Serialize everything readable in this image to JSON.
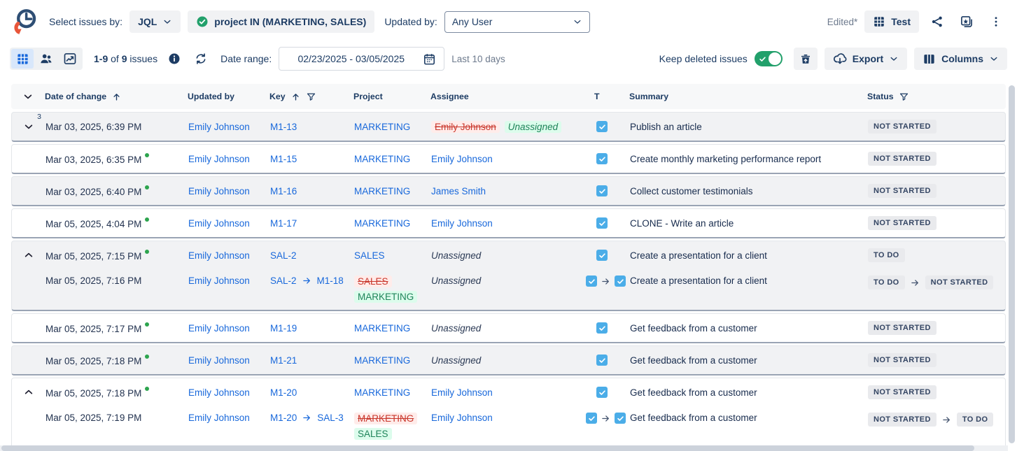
{
  "header": {
    "select_issues_by_label": "Select issues by:",
    "mode_value": "JQL",
    "jql_filter": "project IN (MARKETING, SALES)",
    "updated_by_label": "Updated by:",
    "updated_by_value": "Any User",
    "edited_label": "Edited*",
    "view_name": "Test"
  },
  "toolbar": {
    "count_range": "1-9",
    "count_of": "of",
    "count_total": "9",
    "count_unit": "issues",
    "date_range_label": "Date range:",
    "date_range_value": "02/23/2025 - 03/05/2025",
    "date_hint": "Last 10 days",
    "keep_deleted_label": "Keep deleted issues",
    "keep_deleted_on": true,
    "export_label": "Export",
    "columns_label": "Columns"
  },
  "table": {
    "headers": {
      "date": "Date of change",
      "updated_by": "Updated by",
      "key": "Key",
      "project": "Project",
      "assignee": "Assignee",
      "type": "T",
      "summary": "Summary",
      "status": "Status"
    },
    "cards": [
      {
        "shade": "gray",
        "expander": "down",
        "count": "3",
        "entries": [
          {
            "date": "Mar 03, 2025, 6:39 PM",
            "dot": false,
            "updated_by": "Emily Johnson",
            "key": {
              "value": "M1-13"
            },
            "project": {
              "value": "MARKETING"
            },
            "assignee": {
              "old": "Emily Johnson",
              "new": "Unassigned"
            },
            "type": {
              "changed": false
            },
            "summary": "Publish an article",
            "status": {
              "value": "NOT STARTED"
            }
          }
        ]
      },
      {
        "shade": "white",
        "expander": null,
        "count": null,
        "entries": [
          {
            "date": "Mar 03, 2025, 6:35 PM",
            "dot": true,
            "updated_by": "Emily Johnson",
            "key": {
              "value": "M1-15"
            },
            "project": {
              "value": "MARKETING"
            },
            "assignee": {
              "link": "Emily Johnson"
            },
            "type": {
              "changed": false
            },
            "summary": "Create monthly marketing performance report",
            "status": {
              "value": "NOT STARTED"
            }
          }
        ]
      },
      {
        "shade": "gray",
        "expander": null,
        "count": null,
        "entries": [
          {
            "date": "Mar 03, 2025, 6:40 PM",
            "dot": true,
            "updated_by": "Emily Johnson",
            "key": {
              "value": "M1-16"
            },
            "project": {
              "value": "MARKETING"
            },
            "assignee": {
              "link": "James Smith"
            },
            "type": {
              "changed": false
            },
            "summary": "Collect customer testimonials",
            "status": {
              "value": "NOT STARTED"
            }
          }
        ]
      },
      {
        "shade": "white",
        "expander": null,
        "count": null,
        "entries": [
          {
            "date": "Mar 05, 2025, 4:04 PM",
            "dot": true,
            "updated_by": "Emily Johnson",
            "key": {
              "value": "M1-17"
            },
            "project": {
              "value": "MARKETING"
            },
            "assignee": {
              "link": "Emily Johnson"
            },
            "type": {
              "changed": false
            },
            "summary": "CLONE - Write an article",
            "status": {
              "value": "NOT STARTED"
            }
          }
        ]
      },
      {
        "shade": "gray",
        "expander": "up",
        "count": null,
        "entries": [
          {
            "date": "Mar 05, 2025, 7:15 PM",
            "dot": true,
            "updated_by": "Emily Johnson",
            "key": {
              "value": "SAL-2"
            },
            "project": {
              "value": "SALES"
            },
            "assignee": {
              "italic": "Unassigned"
            },
            "type": {
              "changed": false
            },
            "summary": "Create a presentation for a client",
            "status": {
              "value": "TO DO"
            }
          },
          {
            "date": "Mar 05, 2025, 7:16 PM",
            "dot": false,
            "updated_by": "Emily Johnson",
            "key": {
              "old": "SAL-2",
              "new": "M1-18"
            },
            "project": {
              "old": "SALES",
              "new": "MARKETING"
            },
            "assignee": {
              "italic": "Unassigned"
            },
            "type": {
              "changed": true
            },
            "summary": "Create a presentation for a client",
            "status": {
              "old": "TO DO",
              "new": "NOT STARTED"
            }
          }
        ]
      },
      {
        "shade": "white",
        "expander": null,
        "count": null,
        "entries": [
          {
            "date": "Mar 05, 2025, 7:17 PM",
            "dot": true,
            "updated_by": "Emily Johnson",
            "key": {
              "value": "M1-19"
            },
            "project": {
              "value": "MARKETING"
            },
            "assignee": {
              "italic": "Unassigned"
            },
            "type": {
              "changed": false
            },
            "summary": "Get feedback from a customer",
            "status": {
              "value": "NOT STARTED"
            }
          }
        ]
      },
      {
        "shade": "gray",
        "expander": null,
        "count": null,
        "entries": [
          {
            "date": "Mar 05, 2025, 7:18 PM",
            "dot": true,
            "updated_by": "Emily Johnson",
            "key": {
              "value": "M1-21"
            },
            "project": {
              "value": "MARKETING"
            },
            "assignee": {
              "italic": "Unassigned"
            },
            "type": {
              "changed": false
            },
            "summary": "Get feedback from a customer",
            "status": {
              "value": "NOT STARTED"
            }
          }
        ]
      },
      {
        "shade": "white",
        "expander": "up",
        "count": null,
        "entries": [
          {
            "date": "Mar 05, 2025, 7:18 PM",
            "dot": true,
            "updated_by": "Emily Johnson",
            "key": {
              "value": "M1-20"
            },
            "project": {
              "value": "MARKETING"
            },
            "assignee": {
              "link": "Emily Johnson"
            },
            "type": {
              "changed": false
            },
            "summary": "Get feedback from a customer",
            "status": {
              "value": "NOT STARTED"
            }
          },
          {
            "date": "Mar 05, 2025, 7:19 PM",
            "dot": false,
            "updated_by": "Emily Johnson",
            "key": {
              "old": "M1-20",
              "new": "SAL-3"
            },
            "project": {
              "old": "MARKETING",
              "new": "SALES"
            },
            "assignee": {
              "link": "Emily Johnson"
            },
            "type": {
              "changed": true
            },
            "summary": "Get feedback from a customer",
            "status": {
              "old": "NOT STARTED",
              "new": "TO DO"
            }
          }
        ]
      }
    ]
  },
  "icons": {
    "app-logo": "clock-with-orange-arrow",
    "filter-valid-icon": "green-check-circle",
    "view-grid-icon": "table-grid",
    "view-people-icon": "two-people",
    "view-chart-icon": "line-chart-box",
    "info-icon": "info-circle",
    "refresh-icon": "circular-arrows",
    "calendar-icon": "calendar",
    "trash-restore-icon": "trash-with-up-arrow",
    "export-icon": "cloud-down-arrow",
    "columns-icon": "three-columns",
    "share-icon": "share-nodes",
    "views-gallery-icon": "stacked-cards-star",
    "more-menu-icon": "kebab-dots",
    "task-type-icon": "blue-checkbox-check",
    "sort-asc-icon": "arrow-up",
    "filter-column-icon": "funnel",
    "transition-arrow-icon": "right-arrow"
  },
  "colors": {
    "link": "#1868db",
    "text": "#1d3c64",
    "removed_text": "#c9372c",
    "removed_bg": "#ffecea",
    "added_text": "#1f845a",
    "added_bg": "#dcfcec",
    "toggle_on": "#22a06b",
    "task_blue": "#4bade8",
    "badge_bg": "#e9eaed",
    "badge_text": "#344563",
    "row_gray": "#f1f2f4",
    "header_bg": "#f7f8f9",
    "green_dot": "#2da44e",
    "logo_orange": "#e8563a"
  }
}
